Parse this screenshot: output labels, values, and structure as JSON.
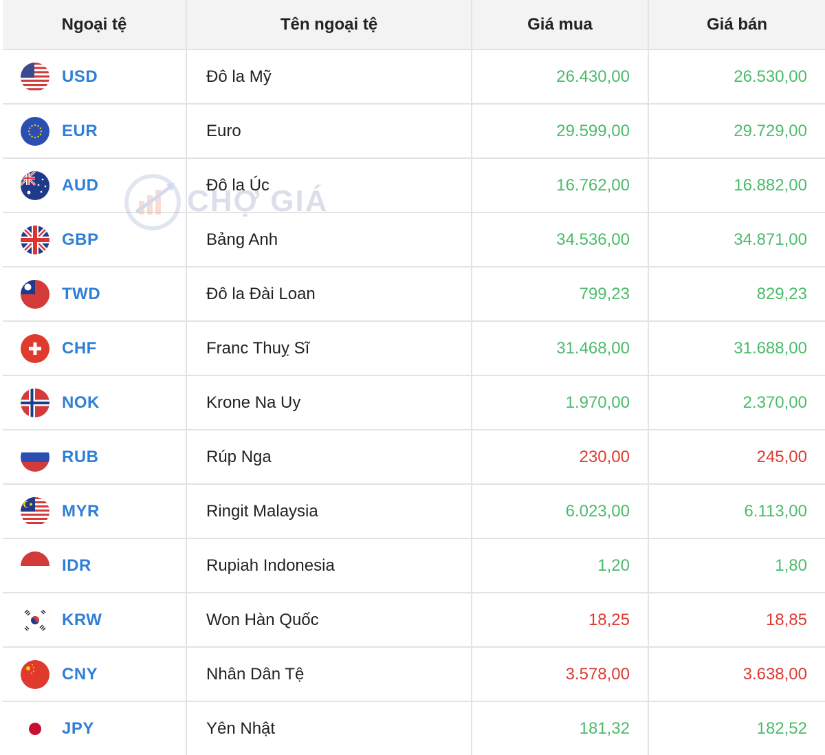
{
  "table": {
    "headers": [
      "Ngoại tệ",
      "Tên ngoại tệ",
      "Giá mua",
      "Giá bán"
    ],
    "colors": {
      "up": "#4cbb6c",
      "down": "#dd3a32"
    },
    "rows": [
      {
        "code": "USD",
        "name": "Đô la Mỹ",
        "buy": "26.430,00",
        "sell": "26.530,00",
        "trend": "up",
        "flag": "us-flag-icon"
      },
      {
        "code": "EUR",
        "name": "Euro",
        "buy": "29.599,00",
        "sell": "29.729,00",
        "trend": "up",
        "flag": "eu-flag-icon"
      },
      {
        "code": "AUD",
        "name": "Đô la Úc",
        "buy": "16.762,00",
        "sell": "16.882,00",
        "trend": "up",
        "flag": "au-flag-icon"
      },
      {
        "code": "GBP",
        "name": "Bảng Anh",
        "buy": "34.536,00",
        "sell": "34.871,00",
        "trend": "up",
        "flag": "gb-flag-icon"
      },
      {
        "code": "TWD",
        "name": "Đô la Đài Loan",
        "buy": "799,23",
        "sell": "829,23",
        "trend": "up",
        "flag": "tw-flag-icon"
      },
      {
        "code": "CHF",
        "name": "Franc Thuỵ Sĩ",
        "buy": "31.468,00",
        "sell": "31.688,00",
        "trend": "up",
        "flag": "ch-flag-icon"
      },
      {
        "code": "NOK",
        "name": "Krone Na Uy",
        "buy": "1.970,00",
        "sell": "2.370,00",
        "trend": "up",
        "flag": "no-flag-icon"
      },
      {
        "code": "RUB",
        "name": "Rúp Nga",
        "buy": "230,00",
        "sell": "245,00",
        "trend": "down",
        "flag": "ru-flag-icon"
      },
      {
        "code": "MYR",
        "name": "Ringit Malaysia",
        "buy": "6.023,00",
        "sell": "6.113,00",
        "trend": "up",
        "flag": "my-flag-icon"
      },
      {
        "code": "IDR",
        "name": "Rupiah Indonesia",
        "buy": "1,20",
        "sell": "1,80",
        "trend": "up",
        "flag": "id-flag-icon"
      },
      {
        "code": "KRW",
        "name": "Won Hàn Quốc",
        "buy": "18,25",
        "sell": "18,85",
        "trend": "down",
        "flag": "kr-flag-icon"
      },
      {
        "code": "CNY",
        "name": "Nhân Dân Tệ",
        "buy": "3.578,00",
        "sell": "3.638,00",
        "trend": "down",
        "flag": "cn-flag-icon"
      },
      {
        "code": "JPY",
        "name": "Yên Nhật",
        "buy": "181,32",
        "sell": "182,52",
        "trend": "up",
        "flag": "jp-flag-icon"
      }
    ]
  },
  "watermark": {
    "text": "CHỢ GIÁ"
  }
}
